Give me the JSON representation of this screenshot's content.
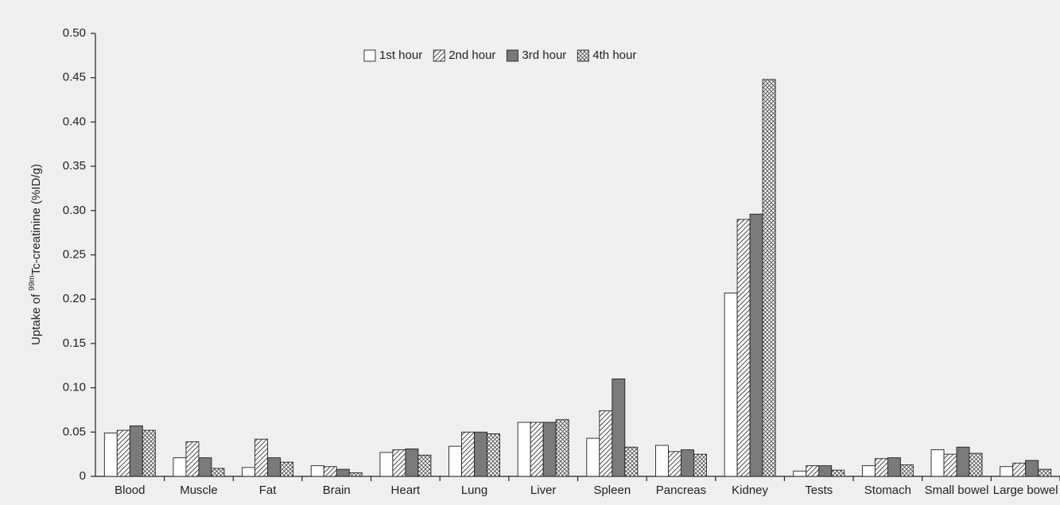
{
  "chart_data": {
    "type": "bar",
    "y_label": {
      "prefix": "Uptake of ",
      "superscript": "99m",
      "suffix": "Tc-creatinine (%ID/g)"
    },
    "categories": [
      "Blood",
      "Muscle",
      "Fat",
      "Brain",
      "Heart",
      "Lung",
      "Liver",
      "Spleen",
      "Pancreas",
      "Kidney",
      "Tests",
      "Stomach",
      "Small bowel",
      "Large bowel"
    ],
    "series": [
      {
        "name": "1st hour",
        "color": "#ffffff",
        "pattern": "solid",
        "values": [
          0.049,
          0.021,
          0.01,
          0.012,
          0.027,
          0.034,
          0.061,
          0.043,
          0.035,
          0.207,
          0.006,
          0.012,
          0.03,
          0.011
        ]
      },
      {
        "name": "2nd hour",
        "color": "#ffffff",
        "pattern": "diagonal",
        "values": [
          0.052,
          0.039,
          0.042,
          0.011,
          0.03,
          0.05,
          0.061,
          0.074,
          0.028,
          0.29,
          0.012,
          0.02,
          0.025,
          0.015
        ]
      },
      {
        "name": "3rd hour",
        "color": "#7a7a7a",
        "pattern": "solid",
        "values": [
          0.057,
          0.021,
          0.021,
          0.008,
          0.031,
          0.05,
          0.061,
          0.11,
          0.03,
          0.296,
          0.012,
          0.021,
          0.033,
          0.018
        ]
      },
      {
        "name": "4th hour",
        "color": "#ffffff",
        "pattern": "crosshatch",
        "values": [
          0.052,
          0.009,
          0.016,
          0.004,
          0.024,
          0.048,
          0.064,
          0.033,
          0.025,
          0.448,
          0.007,
          0.013,
          0.026,
          0.008
        ]
      }
    ],
    "ylim": [
      0,
      0.5
    ],
    "yticks": [
      0,
      {
        "value": 0.05,
        "label": "0.05"
      },
      {
        "value": 0.1,
        "label": "0.10"
      },
      {
        "value": 0.15,
        "label": "0.15"
      },
      {
        "value": 0.2,
        "label": "0.20"
      },
      {
        "value": 0.25,
        "label": "0.25"
      },
      {
        "value": 0.3,
        "label": "0.30"
      },
      {
        "value": 0.35,
        "label": "0.35"
      },
      {
        "value": 0.4,
        "label": "0.40"
      },
      {
        "value": 0.45,
        "label": "0.45"
      },
      {
        "value": 0.5,
        "label": "0.50"
      }
    ],
    "legend": "top"
  }
}
